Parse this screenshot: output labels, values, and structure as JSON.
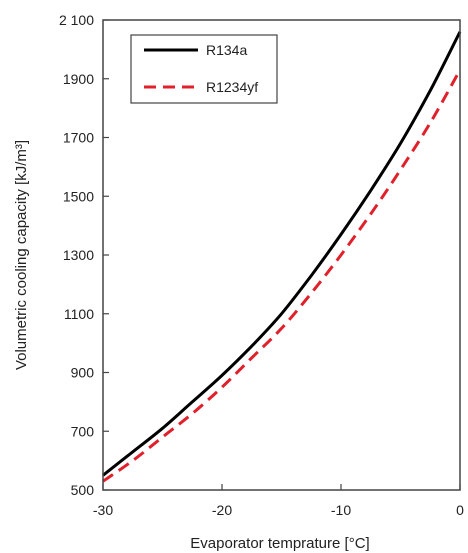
{
  "chart_data": {
    "type": "line",
    "xlabel": "Evaporator temprature [°C]",
    "ylabel": "Volumetric cooling capacity [kJ/m³]",
    "xlim": [
      -30,
      0
    ],
    "ylim": [
      500,
      2100
    ],
    "xticks": [
      -30,
      -20,
      -10,
      0
    ],
    "yticks": [
      500,
      700,
      900,
      1100,
      1300,
      1500,
      1700,
      1900,
      2100
    ],
    "x_tick_labels": [
      "-30",
      "-20",
      "-10",
      "0"
    ],
    "y_tick_labels": [
      "500",
      "700",
      "900",
      "1100",
      "1300",
      "1500",
      "1700",
      "1900",
      "2 100"
    ],
    "grid": false,
    "legend_position": "top-left",
    "series": [
      {
        "name": "R134a",
        "color": "#000000",
        "style": "solid",
        "x": [
          -30,
          -27.5,
          -25,
          -22.5,
          -20,
          -17.5,
          -15,
          -12.5,
          -10,
          -7.5,
          -5,
          -2.5,
          0
        ],
        "y": [
          550,
          630,
          710,
          800,
          890,
          990,
          1100,
          1230,
          1370,
          1520,
          1680,
          1860,
          2060
        ]
      },
      {
        "name": "R1234yf",
        "color": "#e0202a",
        "style": "dashed",
        "x": [
          -30,
          -27.5,
          -25,
          -22.5,
          -20,
          -17.5,
          -15,
          -12.5,
          -10,
          -7.5,
          -5,
          -2.5,
          0
        ],
        "y": [
          530,
          600,
          680,
          760,
          850,
          950,
          1050,
          1170,
          1300,
          1440,
          1590,
          1750,
          1930
        ]
      }
    ]
  }
}
